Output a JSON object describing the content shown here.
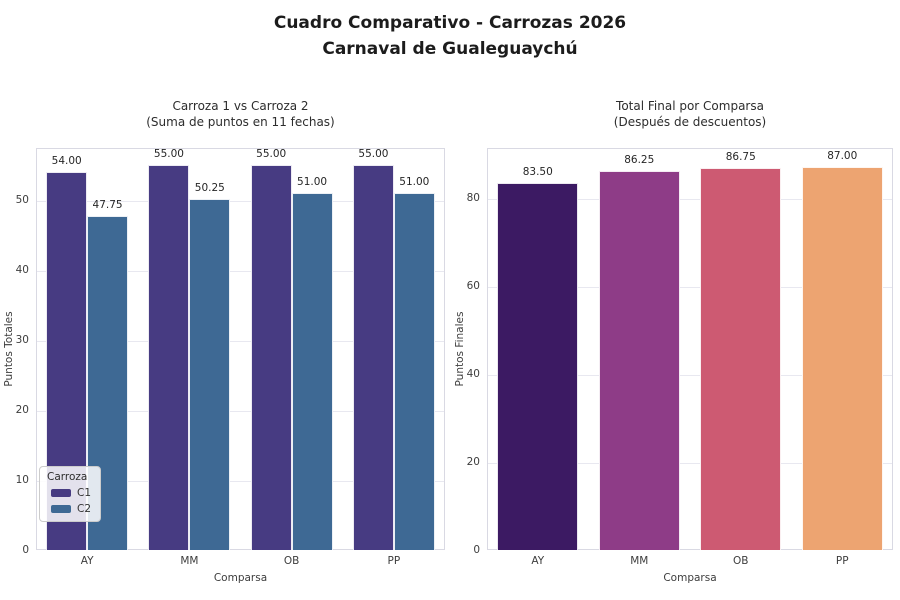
{
  "header": {
    "suptitle_line1": "Cuadro Comparativo - Carrozas 2026",
    "suptitle_line2": "Carnaval de Gualeguaychú"
  },
  "chart_data": [
    {
      "type": "bar",
      "variant": "grouped",
      "title": "Carroza 1 vs Carroza 2",
      "subtitle": "(Suma de puntos en 11 fechas)",
      "xlabel": "Comparsa",
      "ylabel": "Puntos Totales",
      "categories": [
        "AY",
        "MM",
        "OB",
        "PP"
      ],
      "series": [
        {
          "name": "C1",
          "color": "#473b82",
          "values": [
            54.0,
            55.0,
            55.0,
            55.0
          ],
          "labels": [
            "54.00",
            "55.00",
            "55.00",
            "55.00"
          ]
        },
        {
          "name": "C2",
          "color": "#3e6994",
          "values": [
            47.75,
            50.25,
            51.0,
            51.0
          ],
          "labels": [
            "47.75",
            "50.25",
            "51.00",
            "51.00"
          ]
        }
      ],
      "yticks": [
        0,
        10,
        20,
        30,
        40,
        50
      ],
      "ylim": [
        0,
        57.5
      ],
      "grid": true,
      "legend": {
        "title": "Carroza",
        "position": "lower-left",
        "items": [
          {
            "label": "C1",
            "color": "#473b82"
          },
          {
            "label": "C2",
            "color": "#3e6994"
          }
        ]
      }
    },
    {
      "type": "bar",
      "variant": "simple",
      "title": "Total Final por Comparsa",
      "subtitle": "(Después de descuentos)",
      "xlabel": "Comparsa",
      "ylabel": "Puntos Finales",
      "categories": [
        "AY",
        "MM",
        "OB",
        "PP"
      ],
      "values": [
        83.5,
        86.25,
        86.75,
        87.0
      ],
      "labels": [
        "83.50",
        "86.25",
        "86.75",
        "87.00"
      ],
      "bar_colors": [
        "#3c1a63",
        "#8e3c87",
        "#cd5a72",
        "#eda471"
      ],
      "yticks": [
        0,
        20,
        40,
        60,
        80
      ],
      "ylim": [
        0,
        91.4
      ],
      "grid": true,
      "legend": null
    }
  ]
}
